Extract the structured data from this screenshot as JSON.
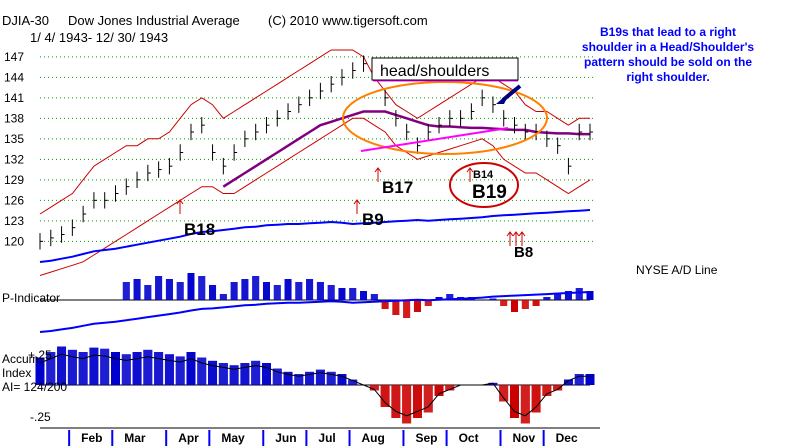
{
  "header": {
    "symbol": "DJIA-30",
    "name": "Dow Jones Industrial Average",
    "date_range": "1/ 4/ 1943- 12/ 30/ 1943",
    "copyright": "(C) 2010 www.tigersoft.com"
  },
  "note": {
    "lines": [
      "B19s that lead to a right",
      "shoulder in a Head/Shoulder's",
      "pattern should be sold on the",
      "right shoulder."
    ]
  },
  "colors": {
    "price_bars": "#000000",
    "bands": "#cc0000",
    "ma": "#800080",
    "ad_line": "#0000ff",
    "positive_hist": "#0000cc",
    "negative_hist": "#cc0000",
    "head_shoulders_box": "#ff00ff",
    "ellipse": "#ff8000",
    "arrow": "#000080",
    "gridlines": "#00a000",
    "month_ticks": "#0000ff"
  },
  "chart_data": {
    "type": "line",
    "title": "DJIA-30 Dow Jones Industrial Average",
    "x": [
      0,
      1,
      2,
      3,
      4,
      5,
      6,
      7,
      8,
      9,
      10,
      11,
      12,
      13,
      14,
      15,
      16,
      17,
      18,
      19,
      20,
      21,
      22,
      23,
      24,
      25,
      26,
      27,
      28,
      29,
      30,
      31,
      32,
      33,
      34,
      35,
      36,
      37,
      38,
      39,
      40,
      41,
      42,
      43,
      44,
      45,
      46,
      47,
      48,
      49,
      50,
      51
    ],
    "x_unit": "week of 1943",
    "price": [
      120,
      120.5,
      121,
      122,
      124,
      126,
      126,
      127,
      128,
      129,
      130,
      130.5,
      131,
      133,
      136,
      137,
      133,
      131,
      133,
      135,
      136,
      137,
      138,
      139,
      140,
      141,
      142,
      143,
      144,
      145,
      146,
      145,
      141,
      138,
      136,
      134,
      136,
      137,
      138,
      138,
      139,
      141,
      140,
      138,
      137,
      136,
      136,
      135,
      134,
      131,
      136,
      136
    ],
    "ma": [
      null,
      null,
      null,
      null,
      null,
      null,
      null,
      null,
      null,
      null,
      null,
      null,
      null,
      null,
      null,
      null,
      null,
      128,
      129,
      130,
      131,
      132,
      133,
      134,
      135,
      136,
      137,
      137.5,
      138,
      138.5,
      139,
      139,
      139,
      138.5,
      138,
      137.5,
      137,
      136.8,
      136.8,
      136.7,
      136.6,
      136.6,
      136.5,
      136.4,
      136.3,
      136.3,
      136,
      135.9,
      135.8,
      135.8,
      135.7,
      135.7
    ],
    "upper_band": [
      124,
      125,
      126,
      127,
      129,
      131,
      132,
      133,
      134,
      134,
      135,
      135,
      136,
      138,
      140,
      141,
      140,
      138,
      139,
      140,
      141,
      142,
      143,
      144,
      145,
      146,
      147,
      148,
      148,
      148,
      147,
      144,
      142,
      140,
      139,
      138,
      139,
      140,
      141,
      142,
      143,
      144,
      144,
      143,
      142,
      140,
      139,
      139,
      138,
      137,
      138,
      138
    ],
    "lower_band": [
      115,
      115.5,
      116,
      116.5,
      117,
      118,
      119,
      120,
      121,
      122,
      123,
      124,
      125,
      126,
      127,
      128,
      128,
      127,
      127,
      128,
      129,
      130,
      131,
      132,
      133,
      134,
      135,
      136,
      137,
      138,
      138,
      137,
      136,
      134,
      133,
      132,
      132.5,
      133,
      133.5,
      134,
      134.5,
      135,
      134,
      132,
      131,
      130,
      130,
      129,
      128,
      127,
      128,
      129
    ],
    "ad_line": [
      -100,
      -98,
      -95,
      -92,
      -88,
      -84,
      -82,
      -80,
      -77,
      -74,
      -71,
      -68,
      -65,
      -62,
      -58,
      -55,
      -54,
      -52,
      -50,
      -48,
      -47,
      -45,
      -44,
      -43,
      -43,
      -42,
      -41,
      -40,
      -41,
      -43,
      -42,
      -41,
      -40,
      -39,
      -38,
      -37,
      -38,
      -37,
      -36,
      -35,
      -34,
      -33,
      -31,
      -30,
      -29,
      -28,
      -27,
      -26,
      -25,
      -24,
      -23,
      -22
    ],
    "p_indicator": [
      0,
      0,
      0,
      0,
      0,
      0,
      0,
      0,
      0.6,
      0.7,
      0.5,
      0.8,
      0.7,
      0.6,
      0.9,
      0.8,
      0.5,
      0.2,
      0.6,
      0.7,
      0.8,
      0.6,
      0.5,
      0.7,
      0.6,
      0.7,
      0.6,
      0.5,
      0.4,
      0.4,
      0.3,
      0.2,
      -0.3,
      -0.5,
      -0.6,
      -0.4,
      -0.2,
      0.1,
      0.2,
      0.1,
      0.1,
      0.0,
      0.05,
      -0.2,
      -0.4,
      -0.3,
      -0.2,
      0.1,
      0.2,
      0.3,
      0.4,
      0.3
    ],
    "accum": [
      0.25,
      0.3,
      0.35,
      0.32,
      0.3,
      0.34,
      0.33,
      0.3,
      0.28,
      0.3,
      0.32,
      0.3,
      0.28,
      0.26,
      0.3,
      0.25,
      0.22,
      0.2,
      0.18,
      0.2,
      0.22,
      0.2,
      0.15,
      0.12,
      0.1,
      0.12,
      0.14,
      0.12,
      0.1,
      0.05,
      0,
      -0.05,
      -0.2,
      -0.3,
      -0.35,
      -0.3,
      -0.25,
      -0.1,
      -0.05,
      0,
      0,
      0,
      0.02,
      -0.15,
      -0.3,
      -0.35,
      -0.25,
      -0.1,
      -0.05,
      0.05,
      0.1,
      0.1
    ],
    "ylim": [
      118,
      148
    ],
    "yticks": [
      120,
      123,
      126,
      129,
      132,
      135,
      138,
      141,
      144,
      147
    ],
    "months": [
      "Feb",
      "Mar",
      "Apr",
      "May",
      "Jun",
      "Jul",
      "Aug",
      "Sep",
      "Oct",
      "Nov",
      "Dec"
    ],
    "month_start_weeks": [
      4,
      8,
      13,
      17,
      22,
      26,
      30,
      35,
      39,
      44,
      48
    ],
    "signals": [
      {
        "label": "B18",
        "week": 15
      },
      {
        "label": "B17",
        "week": 33
      },
      {
        "label": "B9",
        "week": 34
      },
      {
        "label": "B14",
        "week": 44
      },
      {
        "label": "B19",
        "week": 44
      },
      {
        "label": "B8",
        "week": 47
      }
    ],
    "annotations": {
      "head_shoulders": "head/shoulders",
      "ad_label": "NYSE A/D Line",
      "p_label": "P-Indicator",
      "accum_label_1": "Accum",
      "accum_label_2": "Index",
      "accum_label_3": "AI= 124/200",
      "accum_plus": "+.25",
      "accum_minus": "-.25"
    }
  }
}
